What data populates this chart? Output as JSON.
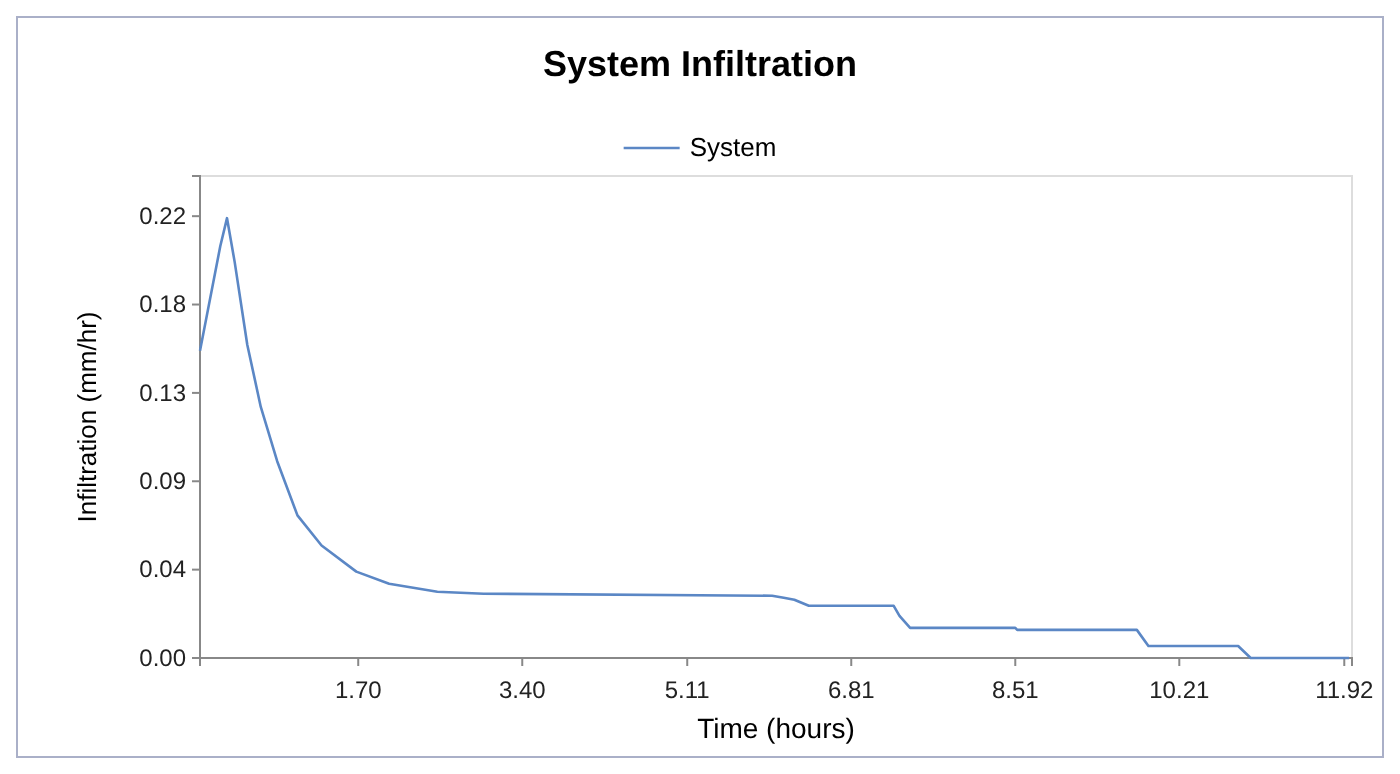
{
  "chart_data": {
    "type": "line",
    "title": "System Infiltration",
    "xlabel": "Time (hours)",
    "ylabel": "Infiltration (mm/hr)",
    "xlim": [
      0.06,
      12
    ],
    "xticks": [
      {
        "value": 1.7,
        "label": "1.70"
      },
      {
        "value": 3.4,
        "label": "3.40"
      },
      5.11,
      6.81,
      8.51,
      10.21,
      11.92
    ],
    "ylim": [
      0,
      0.24
    ],
    "yticks": [
      {
        "value": 0,
        "label": "0.00"
      },
      {
        "value": 0.044,
        "label": "0.04"
      },
      {
        "value": 0.088,
        "label": "0.09"
      },
      {
        "value": 0.132,
        "label": "0.13"
      },
      {
        "value": 0.176,
        "label": "0.18"
      },
      {
        "value": 0.22,
        "label": "0.22"
      }
    ],
    "grid": false,
    "legend": "top",
    "marker": "none",
    "line_style": "solid",
    "series": [
      {
        "name": "System",
        "color": "#5b87c5",
        "x": [
          0.06,
          0.27,
          0.34,
          0.42,
          0.55,
          0.69,
          0.86,
          1.07,
          1.32,
          1.68,
          2.02,
          2.52,
          3.0,
          5.99,
          6.11,
          6.22,
          6.37,
          7.25,
          7.31,
          7.42,
          8.51,
          8.53,
          9.77,
          9.89,
          10.82,
          10.95,
          11.97
        ],
        "values": [
          0.153,
          0.205,
          0.219,
          0.197,
          0.156,
          0.125,
          0.098,
          0.071,
          0.056,
          0.043,
          0.037,
          0.033,
          0.032,
          0.031,
          0.03,
          0.029,
          0.026,
          0.026,
          0.021,
          0.015,
          0.015,
          0.014,
          0.014,
          0.006,
          0.006,
          0,
          0
        ]
      }
    ]
  }
}
